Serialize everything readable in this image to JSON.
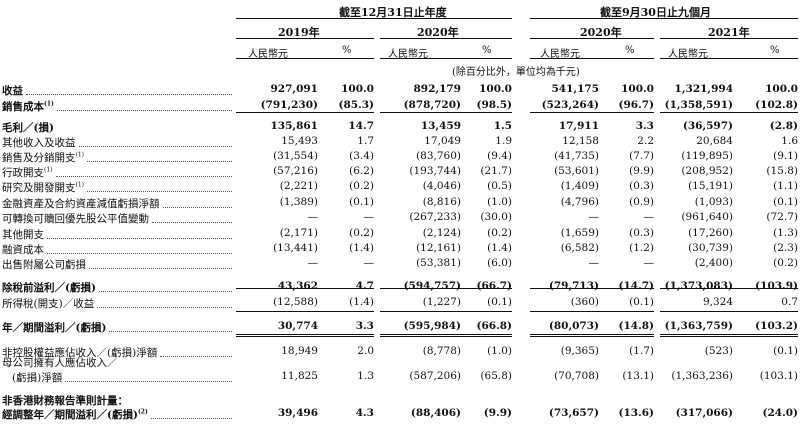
{
  "header": {
    "period_year": "截至12月31日止年度",
    "period_nine": "截至9月30日止九個月",
    "years": [
      "2019年",
      "2020年",
      "2020年",
      "2021年"
    ],
    "unit_rmb": "人民幣元",
    "unit_pct": "%",
    "note": "(除百分比外，單位均為千元)"
  },
  "rows": [
    {
      "label": "收益",
      "sup": "",
      "bold": true,
      "v": [
        "927,091",
        "100.0",
        "892,179",
        "100.0",
        "541,175",
        "100.0",
        "1,321,994",
        "100.0"
      ]
    },
    {
      "label": "銷售成本",
      "sup": "(1)",
      "bold": true,
      "v": [
        "(791,230)",
        "(85.3)",
        "(878,720)",
        "(98.5)",
        "(523,264)",
        "(96.7)",
        "(1,358,591)",
        "(102.8)"
      ]
    },
    {
      "label": "毛利／(損)",
      "sup": "",
      "bold": true,
      "v": [
        "135,861",
        "14.7",
        "13,459",
        "1.5",
        "17,911",
        "3.3",
        "(36,597)",
        "(2.8)"
      ]
    },
    {
      "label": "其他收入及收益",
      "sup": "",
      "bold": false,
      "v": [
        "15,493",
        "1.7",
        "17,049",
        "1.9",
        "12,158",
        "2.2",
        "20,684",
        "1.6"
      ]
    },
    {
      "label": "銷售及分銷開支",
      "sup": "(1)",
      "bold": false,
      "v": [
        "(31,554)",
        "(3.4)",
        "(83,760)",
        "(9.4)",
        "(41,735)",
        "(7.7)",
        "(119,895)",
        "(9.1)"
      ]
    },
    {
      "label": "行政開支",
      "sup": "(1)",
      "bold": false,
      "v": [
        "(57,216)",
        "(6.2)",
        "(193,744)",
        "(21.7)",
        "(53,601)",
        "(9.9)",
        "(208,952)",
        "(15.8)"
      ]
    },
    {
      "label": "研究及開發開支",
      "sup": "(1)",
      "bold": false,
      "v": [
        "(2,221)",
        "(0.2)",
        "(4,046)",
        "(0.5)",
        "(1,409)",
        "(0.3)",
        "(15,191)",
        "(1.1)"
      ]
    },
    {
      "label": "金融資產及合約資產減值虧損淨額",
      "sup": "",
      "bold": false,
      "v": [
        "(1,389)",
        "(0.1)",
        "(8,816)",
        "(1.0)",
        "(4,796)",
        "(0.9)",
        "(1,093)",
        "(0.1)"
      ]
    },
    {
      "label": "可轉換可贖回優先股公平值變動",
      "sup": "",
      "bold": false,
      "v": [
        "—",
        "—",
        "(267,233)",
        "(30.0)",
        "—",
        "—",
        "(961,640)",
        "(72.7)"
      ]
    },
    {
      "label": "其他開支",
      "sup": "",
      "bold": false,
      "v": [
        "(2,171)",
        "(0.2)",
        "(2,124)",
        "(0.2)",
        "(1,659)",
        "(0.3)",
        "(17,260)",
        "(1.3)"
      ]
    },
    {
      "label": "融資成本",
      "sup": "",
      "bold": false,
      "v": [
        "(13,441)",
        "(1.4)",
        "(12,161)",
        "(1.4)",
        "(6,582)",
        "(1.2)",
        "(30,739)",
        "(2.3)"
      ]
    },
    {
      "label": "出售附屬公司虧損",
      "sup": "",
      "bold": false,
      "v": [
        "—",
        "—",
        "(53,381)",
        "(6.0)",
        "—",
        "—",
        "(2,400)",
        "(0.2)"
      ]
    },
    {
      "label": "除稅前溢利／(虧損)",
      "sup": "",
      "bold": true,
      "v": [
        "43,362",
        "4.7",
        "(594,757)",
        "(66.7)",
        "(79,713)",
        "(14.7)",
        "(1,373,083)",
        "(103.9)"
      ]
    },
    {
      "label": "所得稅(開支)／收益",
      "sup": "",
      "bold": false,
      "v": [
        "(12,588)",
        "(1.4)",
        "(1,227)",
        "(0.1)",
        "(360)",
        "(0.1)",
        "9,324",
        "0.7"
      ]
    },
    {
      "label": "年／期間溢利／(虧損)",
      "sup": "",
      "bold": true,
      "v": [
        "30,774",
        "3.3",
        "(595,984)",
        "(66.8)",
        "(80,073)",
        "(14.8)",
        "(1,363,759)",
        "(103.2)"
      ]
    },
    {
      "label": "非控股權益應佔收入／(虧損)淨額",
      "sup": "",
      "bold": false,
      "v": [
        "18,949",
        "2.0",
        "(8,778)",
        "(1.0)",
        "(9,365)",
        "(1.7)",
        "(523)",
        "(0.1)"
      ]
    },
    {
      "label": "(虧損)淨額",
      "sup": "",
      "bold": false,
      "pre": "母公司擁有人應佔收入／",
      "v": [
        "11,825",
        "1.3",
        "(587,206)",
        "(65.8)",
        "(70,708)",
        "(13.1)",
        "(1,363,236)",
        "(103.1)"
      ]
    },
    {
      "label": "非香港財務報告準則計量：",
      "sup": "",
      "bold": true,
      "v": []
    },
    {
      "label": "經調整年／期間溢利／(虧損)",
      "sup": "(2)",
      "bold": true,
      "v": [
        "39,496",
        "4.3",
        "(88,406)",
        "(9.9)",
        "(73,657)",
        "(13.6)",
        "(317,066)",
        "(24.0)"
      ]
    }
  ]
}
